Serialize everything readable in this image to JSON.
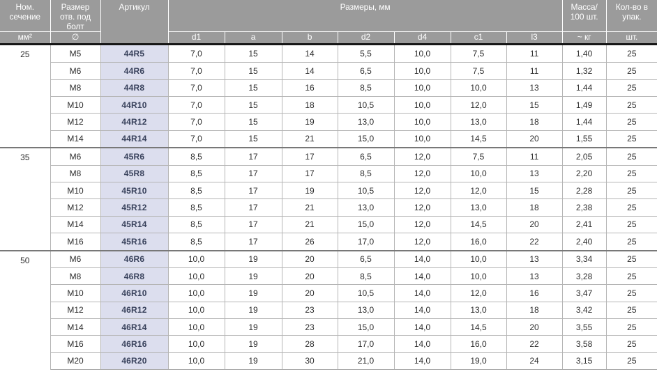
{
  "colors": {
    "header_bg": "#9b9b9b",
    "header_text": "#ffffff",
    "article_cell_bg": "#dcdeee",
    "article_text": "#39425c",
    "row_border": "#b5b5b5",
    "section_border": "#787878",
    "header_underline": "#161616"
  },
  "table": {
    "header": {
      "nominal_section": {
        "title": "Ном.\nсечение",
        "unit": "мм²"
      },
      "bolt_hole_size": {
        "title": "Размер\nотв. под\nболт",
        "unit": "∅"
      },
      "article": {
        "title": "Артикул"
      },
      "dimensions": {
        "title": "Размеры, мм",
        "subcolumns": [
          "d1",
          "a",
          "b",
          "d2",
          "d4",
          "c1",
          "l3"
        ]
      },
      "mass": {
        "title": "Масса/\n100 шт.",
        "unit": "~ кг"
      },
      "quantity": {
        "title": "Кол-во в\nупак.",
        "unit": "шт."
      }
    },
    "sections": [
      {
        "nominal_section": "25",
        "rows": [
          {
            "size": "M5",
            "article": "44R5",
            "d1": "7,0",
            "a": "15",
            "b": "14",
            "d2": "5,5",
            "d4": "10,0",
            "c1": "7,5",
            "l3": "11",
            "mass": "1,40",
            "qty": "25"
          },
          {
            "size": "M6",
            "article": "44R6",
            "d1": "7,0",
            "a": "15",
            "b": "14",
            "d2": "6,5",
            "d4": "10,0",
            "c1": "7,5",
            "l3": "11",
            "mass": "1,32",
            "qty": "25"
          },
          {
            "size": "M8",
            "article": "44R8",
            "d1": "7,0",
            "a": "15",
            "b": "16",
            "d2": "8,5",
            "d4": "10,0",
            "c1": "10,0",
            "l3": "13",
            "mass": "1,44",
            "qty": "25"
          },
          {
            "size": "M10",
            "article": "44R10",
            "d1": "7,0",
            "a": "15",
            "b": "18",
            "d2": "10,5",
            "d4": "10,0",
            "c1": "12,0",
            "l3": "15",
            "mass": "1,49",
            "qty": "25"
          },
          {
            "size": "M12",
            "article": "44R12",
            "d1": "7,0",
            "a": "15",
            "b": "19",
            "d2": "13,0",
            "d4": "10,0",
            "c1": "13,0",
            "l3": "18",
            "mass": "1,44",
            "qty": "25"
          },
          {
            "size": "M14",
            "article": "44R14",
            "d1": "7,0",
            "a": "15",
            "b": "21",
            "d2": "15,0",
            "d4": "10,0",
            "c1": "14,5",
            "l3": "20",
            "mass": "1,55",
            "qty": "25"
          }
        ]
      },
      {
        "nominal_section": "35",
        "rows": [
          {
            "size": "M6",
            "article": "45R6",
            "d1": "8,5",
            "a": "17",
            "b": "17",
            "d2": "6,5",
            "d4": "12,0",
            "c1": "7,5",
            "l3": "11",
            "mass": "2,05",
            "qty": "25"
          },
          {
            "size": "M8",
            "article": "45R8",
            "d1": "8,5",
            "a": "17",
            "b": "17",
            "d2": "8,5",
            "d4": "12,0",
            "c1": "10,0",
            "l3": "13",
            "mass": "2,20",
            "qty": "25"
          },
          {
            "size": "M10",
            "article": "45R10",
            "d1": "8,5",
            "a": "17",
            "b": "19",
            "d2": "10,5",
            "d4": "12,0",
            "c1": "12,0",
            "l3": "15",
            "mass": "2,28",
            "qty": "25"
          },
          {
            "size": "M12",
            "article": "45R12",
            "d1": "8,5",
            "a": "17",
            "b": "21",
            "d2": "13,0",
            "d4": "12,0",
            "c1": "13,0",
            "l3": "18",
            "mass": "2,38",
            "qty": "25"
          },
          {
            "size": "M14",
            "article": "45R14",
            "d1": "8,5",
            "a": "17",
            "b": "21",
            "d2": "15,0",
            "d4": "12,0",
            "c1": "14,5",
            "l3": "20",
            "mass": "2,41",
            "qty": "25"
          },
          {
            "size": "M16",
            "article": "45R16",
            "d1": "8,5",
            "a": "17",
            "b": "26",
            "d2": "17,0",
            "d4": "12,0",
            "c1": "16,0",
            "l3": "22",
            "mass": "2,40",
            "qty": "25"
          }
        ]
      },
      {
        "nominal_section": "50",
        "rows": [
          {
            "size": "M6",
            "article": "46R6",
            "d1": "10,0",
            "a": "19",
            "b": "20",
            "d2": "6,5",
            "d4": "14,0",
            "c1": "10,0",
            "l3": "13",
            "mass": "3,34",
            "qty": "25"
          },
          {
            "size": "M8",
            "article": "46R8",
            "d1": "10,0",
            "a": "19",
            "b": "20",
            "d2": "8,5",
            "d4": "14,0",
            "c1": "10,0",
            "l3": "13",
            "mass": "3,28",
            "qty": "25"
          },
          {
            "size": "M10",
            "article": "46R10",
            "d1": "10,0",
            "a": "19",
            "b": "20",
            "d2": "10,5",
            "d4": "14,0",
            "c1": "12,0",
            "l3": "16",
            "mass": "3,47",
            "qty": "25"
          },
          {
            "size": "M12",
            "article": "46R12",
            "d1": "10,0",
            "a": "19",
            "b": "23",
            "d2": "13,0",
            "d4": "14,0",
            "c1": "13,0",
            "l3": "18",
            "mass": "3,42",
            "qty": "25"
          },
          {
            "size": "M14",
            "article": "46R14",
            "d1": "10,0",
            "a": "19",
            "b": "23",
            "d2": "15,0",
            "d4": "14,0",
            "c1": "14,5",
            "l3": "20",
            "mass": "3,55",
            "qty": "25"
          },
          {
            "size": "M16",
            "article": "46R16",
            "d1": "10,0",
            "a": "19",
            "b": "28",
            "d2": "17,0",
            "d4": "14,0",
            "c1": "16,0",
            "l3": "22",
            "mass": "3,58",
            "qty": "25"
          },
          {
            "size": "M20",
            "article": "46R20",
            "d1": "10,0",
            "a": "19",
            "b": "30",
            "d2": "21,0",
            "d4": "14,0",
            "c1": "19,0",
            "l3": "24",
            "mass": "3,15",
            "qty": "25"
          }
        ]
      }
    ]
  }
}
